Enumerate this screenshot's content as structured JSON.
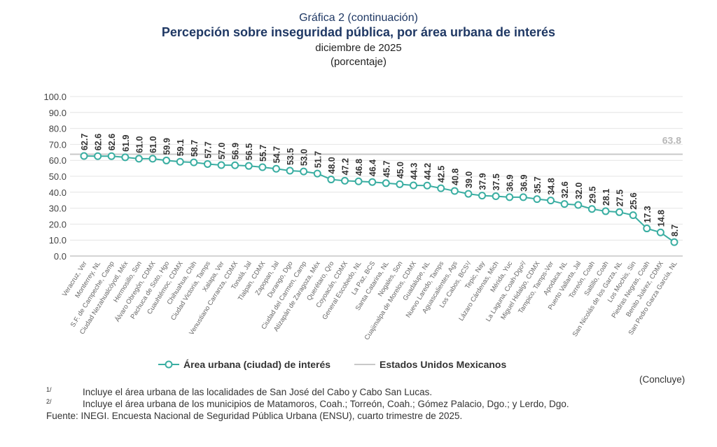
{
  "header": {
    "subtitle_top": "Gráfica 2 (continuación)",
    "title": "Percepción sobre inseguridad pública, por área urbana de interés",
    "date": "diciembre de 2025",
    "unit": "(porcentaje)"
  },
  "chart_data": {
    "type": "line",
    "title": "Percepción sobre inseguridad pública, por área urbana de interés",
    "ylim": [
      0,
      100
    ],
    "yticks": [
      "0.0",
      "10.0",
      "20.0",
      "30.0",
      "40.0",
      "50.0",
      "60.0",
      "70.0",
      "80.0",
      "90.0",
      "100.0"
    ],
    "categories": [
      "Veracruz, Ver",
      "Monterrey, NL",
      "S.F. de Campeche, Camp",
      "Ciudad Nezahualcóyotl, Méx",
      "Hermosillo, Son",
      "Álvaro Obregón, CDMX",
      "Pachuca de Soto, Hgo",
      "Cuauhtémoc, CDMX",
      "Chihuahua, Chih",
      "Ciudad Victoria, Tamps",
      "Xalapa, Ver",
      "Venustiano Carranza, CDMX",
      "Tonalá, Jal",
      "Tlalpan, CDMX",
      "Zapopan, Jal",
      "Durango, Dgo",
      "Ciudad del Carmen, Camp",
      "Atizapán de Zaragoza, Méx",
      "Querétaro, Qro",
      "Coyoacán, CDMX",
      "General Escobedo, NL",
      "La Paz, BCS",
      "Santa Catarina, NL",
      "Nogales, Son",
      "Cuajimalpa de Morelos, CDMX",
      "Guadalupe, NL",
      "Nuevo Laredo, Tamps",
      "Aguascalientes, Ags",
      "Los Cabos, BCS¹/",
      "Tepic, Nay",
      "Lázaro Cárdenas, Mich",
      "Mérida, Yuc",
      "La Laguna, Coah-Dgo²/",
      "Miguel Hidalgo, CDMX",
      "Tampico, Tamps-Ver",
      "Apodaca, NL",
      "Puerto Vallarta, Jal",
      "Torreón, Coah",
      "Saltillo, Coah",
      "San Nicolás de los Garza, NL",
      "Los Mochis, Sin",
      "Piedras Negras, Coah",
      "Benito Juárez, CDMX",
      "San Pedro Garza García, NL"
    ],
    "series": [
      {
        "name": "Área urbana (ciudad) de interés",
        "color": "#3aaea2",
        "values": [
          62.7,
          62.6,
          62.6,
          61.9,
          61.0,
          61.0,
          59.9,
          59.1,
          58.7,
          57.7,
          57.0,
          56.9,
          56.5,
          55.7,
          54.7,
          53.5,
          53.0,
          51.7,
          48.0,
          47.2,
          46.8,
          46.4,
          45.7,
          45.0,
          44.3,
          44.2,
          42.5,
          40.8,
          39.0,
          37.9,
          37.5,
          36.9,
          36.9,
          35.7,
          34.8,
          32.6,
          32.0,
          29.5,
          28.1,
          27.5,
          25.6,
          17.3,
          14.8,
          8.7
        ]
      },
      {
        "name": "Estados Unidos Mexicanos",
        "color": "#c8c8c8",
        "value": 63.8,
        "label": "63.8"
      }
    ],
    "legend": "bottom",
    "grid": true
  },
  "footer": {
    "concluye": "(Concluye)",
    "note1_mark": "1/",
    "note1": "Incluye el área urbana de las localidades de San José del Cabo y Cabo San Lucas.",
    "note2_mark": "2/",
    "note2": "Incluye el área urbana de los municipios de Matamoros, Coah.; Torreón, Coah.; Gómez Palacio, Dgo.; y Lerdo, Dgo.",
    "source": "Fuente: INEGI. Encuesta Nacional de Seguridad Pública Urbana (ENSU), cuarto trimestre de 2025."
  }
}
